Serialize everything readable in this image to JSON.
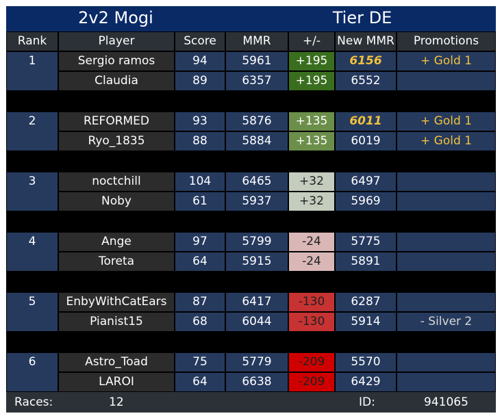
{
  "title": {
    "left": "2v2 Mogi",
    "right": "Tier DE"
  },
  "columns": [
    "Rank",
    "Player",
    "Score",
    "MMR",
    "+/-",
    "New MMR",
    "Promotions"
  ],
  "teams": [
    {
      "rank": "1",
      "players": [
        {
          "name": "Sergio ramos",
          "score": "94",
          "mmr": "5961",
          "delta": "+195",
          "delta_style": "d-dark-green",
          "new_mmr": "6156",
          "new_highlight": true,
          "promotion": "+ Gold 1",
          "promo_style": "gold"
        },
        {
          "name": "Claudia",
          "score": "89",
          "mmr": "6357",
          "delta": "+195",
          "delta_style": "d-dark-green",
          "new_mmr": "6552",
          "new_highlight": false,
          "promotion": "",
          "promo_style": ""
        }
      ]
    },
    {
      "rank": "2",
      "players": [
        {
          "name": "REFORMED",
          "score": "93",
          "mmr": "5876",
          "delta": "+135",
          "delta_style": "d-green",
          "new_mmr": "6011",
          "new_highlight": true,
          "promotion": "+ Gold 1",
          "promo_style": "gold"
        },
        {
          "name": "Ryo_1835",
          "score": "88",
          "mmr": "5884",
          "delta": "+135",
          "delta_style": "d-green",
          "new_mmr": "6019",
          "new_highlight": false,
          "promotion": "+ Gold 1",
          "promo_style": "gold"
        }
      ]
    },
    {
      "rank": "3",
      "players": [
        {
          "name": "noctchill",
          "score": "104",
          "mmr": "6465",
          "delta": "+32",
          "delta_style": "d-light",
          "new_mmr": "6497",
          "new_highlight": false,
          "promotion": "",
          "promo_style": ""
        },
        {
          "name": "Noby",
          "score": "61",
          "mmr": "5937",
          "delta": "+32",
          "delta_style": "d-light",
          "new_mmr": "5969",
          "new_highlight": false,
          "promotion": "",
          "promo_style": ""
        }
      ]
    },
    {
      "rank": "4",
      "players": [
        {
          "name": "Ange",
          "score": "97",
          "mmr": "5799",
          "delta": "-24",
          "delta_style": "d-pink",
          "new_mmr": "5775",
          "new_highlight": false,
          "promotion": "",
          "promo_style": ""
        },
        {
          "name": "Toreta",
          "score": "64",
          "mmr": "5915",
          "delta": "-24",
          "delta_style": "d-pink",
          "new_mmr": "5891",
          "new_highlight": false,
          "promotion": "",
          "promo_style": ""
        }
      ]
    },
    {
      "rank": "5",
      "players": [
        {
          "name": "EnbyWithCatEars",
          "score": "87",
          "mmr": "6417",
          "delta": "-130",
          "delta_style": "d-red",
          "new_mmr": "6287",
          "new_highlight": false,
          "promotion": "",
          "promo_style": ""
        },
        {
          "name": "Pianist15",
          "score": "68",
          "mmr": "6044",
          "delta": "-130",
          "delta_style": "d-red",
          "new_mmr": "5914",
          "new_highlight": false,
          "promotion": "- Silver 2",
          "promo_style": "silver"
        }
      ]
    },
    {
      "rank": "6",
      "players": [
        {
          "name": "Astro_Toad",
          "score": "75",
          "mmr": "5779",
          "delta": "-209",
          "delta_style": "d-bright-red",
          "new_mmr": "5570",
          "new_highlight": false,
          "promotion": "",
          "promo_style": ""
        },
        {
          "name": "LAROI",
          "score": "64",
          "mmr": "6638",
          "delta": "-209",
          "delta_style": "d-bright-red",
          "new_mmr": "6429",
          "new_highlight": false,
          "promotion": "",
          "promo_style": ""
        }
      ]
    }
  ],
  "footer": {
    "races_label": "Races:",
    "races_value": "12",
    "id_label": "ID:",
    "id_value": "941065"
  }
}
